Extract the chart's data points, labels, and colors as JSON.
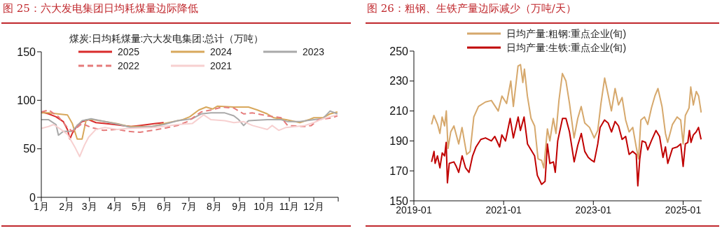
{
  "chart_data": [
    {
      "type": "line",
      "title": "图 25：六大发电集团日均耗煤量边际降低",
      "legend_title": "煤炭:日均耗煤量:六大发电集团:总计（万吨）",
      "legend": "top",
      "xlim": [
        "--01-01",
        "--12-31"
      ],
      "xticks": [
        {
          "value": "--01-01",
          "label": "1月"
        },
        {
          "value": "--02-01",
          "label": "2月"
        },
        {
          "value": "--03-01",
          "label": "3月"
        },
        {
          "value": "--04-01",
          "label": "4月"
        },
        {
          "value": "--05-01",
          "label": "5月"
        },
        {
          "value": "--06-01",
          "label": "6月"
        },
        {
          "value": "--07-01",
          "label": "7月"
        },
        {
          "value": "--08-01",
          "label": "8月"
        },
        {
          "value": "--09-01",
          "label": "9月"
        },
        {
          "value": "--10-01",
          "label": "10月"
        },
        {
          "value": "--11-01",
          "label": "11月"
        },
        {
          "value": "--12-01",
          "label": "12月"
        },
        {
          "value": "--12-31",
          "label": null
        }
      ],
      "ylim": [
        0,
        150
      ],
      "yticks": [
        0,
        50,
        100,
        150
      ],
      "series": [
        {
          "name": "2025",
          "color": "#d92b2b",
          "x": [
            "--01-01",
            "--01-10",
            "--01-19",
            "--01-28",
            "--02-02",
            "--02-05",
            "--02-08",
            "--02-14",
            "--02-20",
            "--02-28",
            "--03-09",
            "--03-20",
            "--04-01",
            "--04-11",
            "--04-21",
            "--05-01",
            "--05-11",
            "--05-21",
            "--05-31"
          ],
          "values": [
            88,
            86,
            83,
            78,
            70,
            60,
            66,
            74,
            78,
            80,
            77,
            76,
            75,
            74,
            73,
            74,
            75,
            76,
            77
          ]
        },
        {
          "name": "2024",
          "color": "#d8a85c",
          "x": [
            "--01-01",
            "--01-10",
            "--01-21",
            "--02-02",
            "--02-08",
            "--02-14",
            "--02-20",
            "--02-25",
            "--03-06",
            "--03-20",
            "--04-04",
            "--04-18",
            "--05-03",
            "--05-17",
            "--05-31",
            "--06-23",
            "--07-02",
            "--07-13",
            "--07-22",
            "--07-30",
            "--08-05",
            "--08-25",
            "--09-12",
            "--09-23",
            "--10-05",
            "--10-13",
            "--10-28",
            "--11-14",
            "--11-25",
            "--12-01",
            "--12-12",
            "--12-21",
            "--12-30"
          ],
          "values": [
            87,
            87,
            86,
            85,
            76,
            60,
            60,
            80,
            80,
            78,
            76,
            73,
            73,
            73,
            76,
            80,
            83,
            90,
            93,
            91,
            94,
            93,
            93,
            90,
            86,
            82,
            80,
            77,
            80,
            82,
            82,
            86,
            88
          ]
        },
        {
          "name": "2023",
          "color": "#a9a9a9",
          "x": [
            "--01-01",
            "--01-10",
            "--01-19",
            "--01-22",
            "--01-28",
            "--02-08",
            "--02-14",
            "--02-20",
            "--03-03",
            "--03-20",
            "--04-07",
            "--04-21",
            "--05-17",
            "--05-31",
            "--06-17",
            "--07-05",
            "--07-16",
            "--07-28",
            "--08-14",
            "--08-25",
            "--08-31",
            "--09-06",
            "--09-12",
            "--10-05",
            "--10-22",
            "--10-30",
            "--11-14",
            "--12-01",
            "--12-12",
            "--12-21",
            "--12-30"
          ],
          "values": [
            80,
            80,
            75,
            64,
            68,
            68,
            74,
            79,
            81,
            78,
            75,
            72,
            73,
            75,
            79,
            81,
            86,
            87,
            87,
            84,
            80,
            74,
            79,
            80,
            80,
            78,
            78,
            80,
            81,
            89,
            86
          ]
        },
        {
          "name": "2022",
          "color": "#e57b7b",
          "line_style": "dashed",
          "x": [
            "--01-01",
            "--01-10",
            "--01-22",
            "--02-02",
            "--02-08",
            "--02-20",
            "--03-03",
            "--03-18",
            "--04-04",
            "--04-18",
            "--05-02",
            "--05-31",
            "--06-17",
            "--06-29",
            "--07-16",
            "--07-28",
            "--08-11",
            "--08-25",
            "--09-06",
            "--09-17",
            "--10-05",
            "--10-22",
            "--10-30",
            "--11-20",
            "--11-28",
            "--12-07",
            "--12-24",
            "--12-30"
          ],
          "values": [
            88,
            90,
            83,
            72,
            68,
            76,
            72,
            69,
            70,
            68,
            67,
            71,
            74,
            78,
            88,
            90,
            93,
            92,
            86,
            87,
            84,
            82,
            74,
            73,
            74,
            80,
            82,
            84
          ]
        },
        {
          "name": "2021",
          "color": "#f7d0d0",
          "x": [
            "--01-01",
            "--01-10",
            "--01-16",
            "--01-25",
            "--02-02",
            "--02-11",
            "--02-17",
            "--02-23",
            "--02-28",
            "--03-09",
            "--03-20",
            "--04-04",
            "--04-18",
            "--05-17",
            "--05-31",
            "--06-17",
            "--07-05",
            "--07-19",
            "--07-28",
            "--08-14",
            "--08-25",
            "--09-06",
            "--09-17",
            "--10-05",
            "--10-11",
            "--10-19",
            "--10-28",
            "--11-20",
            "--12-01",
            "--12-12",
            "--12-30"
          ],
          "values": [
            71,
            73,
            75,
            70,
            65,
            52,
            42,
            54,
            62,
            70,
            72,
            70,
            71,
            72,
            73,
            75,
            76,
            85,
            80,
            79,
            77,
            78,
            74,
            70,
            74,
            69,
            72,
            74,
            77,
            81,
            85
          ]
        }
      ]
    },
    {
      "type": "line",
      "title": "图 26：粗钢、生铁产量边际减少（万吨/天）",
      "legend": "top",
      "xlim": [
        "2019-01-01",
        "2025-06-01"
      ],
      "xticks": [
        "2019-01",
        "2021-01",
        "2023-01",
        "2025-01"
      ],
      "ylim": [
        150,
        250
      ],
      "yticks": [
        150,
        170,
        190,
        210,
        230,
        250
      ],
      "series": [
        {
          "name": "日均产量:粗钢:重点企业(旬)",
          "color": "#d6a86c",
          "x": [
            "2019-05-25",
            "2019-06-13",
            "2019-07-13",
            "2019-08-01",
            "2019-08-19",
            "2019-09-08",
            "2019-09-22",
            "2019-10-06",
            "2019-10-28",
            "2019-11-23",
            "2020-01-01",
            "2020-01-28",
            "2020-03-06",
            "2020-04-03",
            "2020-05-03",
            "2020-06-10",
            "2020-08-06",
            "2020-09-23",
            "2020-11-18",
            "2020-12-18",
            "2021-01-25",
            "2021-02-28",
            "2021-03-21",
            "2021-04-28",
            "2021-05-18",
            "2021-06-06",
            "2021-06-19",
            "2021-07-13",
            "2021-08-12",
            "2021-09-10",
            "2021-10-08",
            "2021-11-06",
            "2021-11-24",
            "2021-12-23",
            "2022-01-12",
            "2022-02-09",
            "2022-03-03",
            "2022-03-27",
            "2022-04-24",
            "2022-05-23",
            "2022-06-21",
            "2022-07-28",
            "2022-08-27",
            "2022-09-24",
            "2022-10-23",
            "2022-12-01",
            "2023-01-08",
            "2023-02-06",
            "2023-03-04",
            "2023-04-03",
            "2023-05-01",
            "2023-05-28",
            "2023-06-27",
            "2023-07-25",
            "2023-08-23",
            "2023-09-21",
            "2023-10-19",
            "2023-11-18",
            "2023-12-16",
            "2024-01-04",
            "2024-01-23",
            "2024-02-21",
            "2024-03-19",
            "2024-04-18",
            "2024-05-16",
            "2024-06-10",
            "2024-07-13",
            "2024-08-10",
            "2024-08-28",
            "2024-10-06",
            "2024-11-13",
            "2024-12-12",
            "2025-01-01",
            "2025-01-19",
            "2025-02-18",
            "2025-03-04",
            "2025-03-25",
            "2025-04-18",
            "2025-05-07",
            "2025-05-28"
          ],
          "values": [
            201,
            207,
            201,
            195,
            206,
            200,
            210,
            185,
            196,
            200,
            188,
            199,
            181,
            183,
            206,
            213,
            216,
            217,
            210,
            220,
            215,
            230,
            213,
            240,
            241,
            229,
            238,
            220,
            205,
            200,
            178,
            177,
            172,
            198,
            190,
            205,
            195,
            217,
            235,
            230,
            215,
            192,
            205,
            213,
            202,
            199,
            192,
            197,
            215,
            232,
            221,
            210,
            225,
            214,
            219,
            204,
            196,
            199,
            186,
            178,
            204,
            206,
            201,
            212,
            220,
            225,
            213,
            195,
            189,
            201,
            206,
            204,
            188,
            207,
            212,
            226,
            214,
            223,
            220,
            209
          ]
        },
        {
          "name": "日均产量:生铁:重点企业(旬)",
          "color": "#c00000",
          "x": [
            "2019-05-25",
            "2019-06-14",
            "2019-06-23",
            "2019-07-12",
            "2019-08-01",
            "2019-08-20",
            "2019-09-08",
            "2019-09-21",
            "2019-10-01",
            "2019-10-16",
            "2019-11-23",
            "2019-12-12",
            "2020-01-01",
            "2020-01-29",
            "2020-02-26",
            "2020-03-25",
            "2020-04-23",
            "2020-05-21",
            "2020-06-29",
            "2020-08-06",
            "2020-09-23",
            "2020-10-21",
            "2020-11-29",
            "2020-12-17",
            "2021-01-16",
            "2021-02-23",
            "2021-03-21",
            "2021-04-29",
            "2021-05-17",
            "2021-06-16",
            "2021-07-14",
            "2021-08-12",
            "2021-09-10",
            "2021-10-02",
            "2021-11-06",
            "2021-12-04",
            "2021-12-23",
            "2022-01-12",
            "2022-02-10",
            "2022-02-25",
            "2022-03-17",
            "2022-04-25",
            "2022-05-23",
            "2022-06-21",
            "2022-07-29",
            "2022-08-27",
            "2022-09-25",
            "2022-10-23",
            "2022-11-21",
            "2022-12-19",
            "2023-01-08",
            "2023-02-06",
            "2023-02-25",
            "2023-04-02",
            "2023-05-01",
            "2023-05-29",
            "2023-06-27",
            "2023-07-25",
            "2023-08-23",
            "2023-09-21",
            "2023-10-19",
            "2023-11-17",
            "2023-12-16",
            "2023-12-29",
            "2024-01-14",
            "2024-02-02",
            "2024-03-01",
            "2024-03-19",
            "2024-04-17",
            "2024-05-25",
            "2024-06-23",
            "2024-07-21",
            "2024-08-10",
            "2024-08-29",
            "2024-10-06",
            "2024-11-14",
            "2024-12-12",
            "2025-01-01",
            "2025-01-19",
            "2025-02-08",
            "2025-02-21",
            "2025-03-06",
            "2025-03-25",
            "2025-04-17",
            "2025-05-06",
            "2025-05-27"
          ],
          "values": [
            176,
            183,
            175,
            180,
            172,
            182,
            180,
            189,
            162,
            175,
            176,
            173,
            169,
            180,
            172,
            169,
            180,
            186,
            191,
            192,
            190,
            193,
            186,
            194,
            190,
            205,
            192,
            206,
            197,
            206,
            188,
            184,
            180,
            167,
            161,
            163,
            188,
            175,
            176,
            169,
            190,
            205,
            205,
            196,
            176,
            187,
            195,
            183,
            179,
            177,
            176,
            188,
            199,
            204,
            202,
            196,
            203,
            200,
            191,
            193,
            181,
            183,
            181,
            160,
            178,
            190,
            189,
            184,
            190,
            197,
            193,
            179,
            186,
            175,
            185,
            186,
            188,
            173,
            188,
            189,
            197,
            189,
            194,
            196,
            199,
            191
          ]
        }
      ]
    }
  ]
}
